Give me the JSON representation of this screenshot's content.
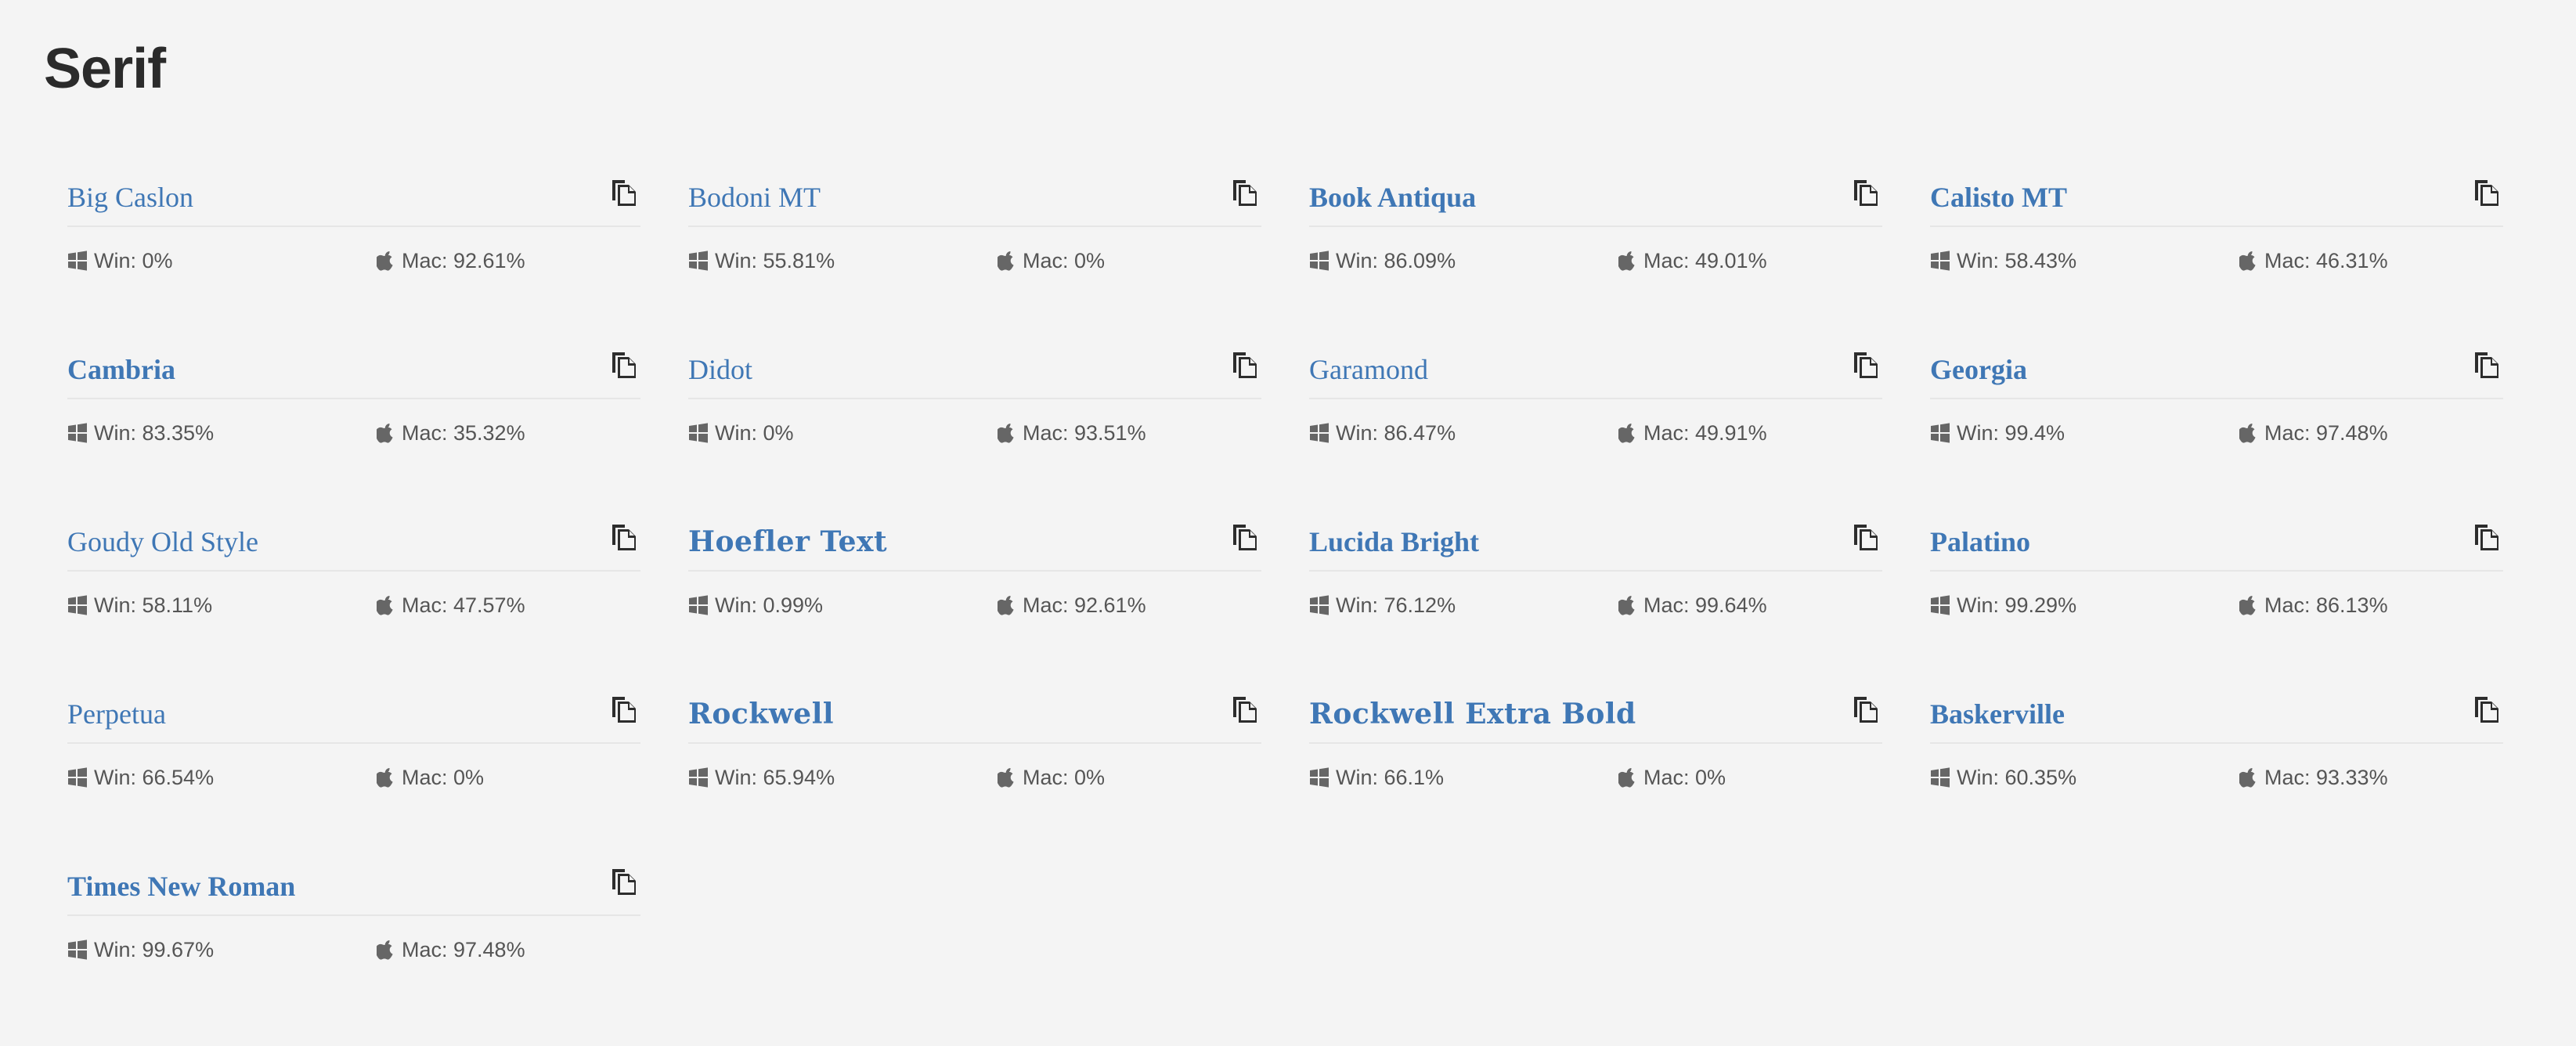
{
  "section": {
    "title": "Serif"
  },
  "colors": {
    "accent": "#3f77b5",
    "text": "#555555",
    "background": "#f4f4f4"
  },
  "icons": {
    "win": "windows-icon",
    "mac": "apple-icon",
    "copy": "copy-icon"
  },
  "fonts": [
    {
      "name": "Big Caslon",
      "win": "Win: 0%",
      "mac": "Mac: 92.61%"
    },
    {
      "name": "Bodoni MT",
      "win": "Win: 55.81%",
      "mac": "Mac: 0%"
    },
    {
      "name": "Book Antiqua",
      "win": "Win: 86.09%",
      "mac": "Mac: 49.01%"
    },
    {
      "name": "Calisto MT",
      "win": "Win: 58.43%",
      "mac": "Mac: 46.31%"
    },
    {
      "name": "Cambria",
      "win": "Win: 83.35%",
      "mac": "Mac: 35.32%"
    },
    {
      "name": "Didot",
      "win": "Win: 0%",
      "mac": "Mac: 93.51%"
    },
    {
      "name": "Garamond",
      "win": "Win: 86.47%",
      "mac": "Mac: 49.91%"
    },
    {
      "name": "Georgia",
      "win": "Win: 99.4%",
      "mac": "Mac: 97.48%"
    },
    {
      "name": "Goudy Old Style",
      "win": "Win: 58.11%",
      "mac": "Mac: 47.57%"
    },
    {
      "name": "Hoefler Text",
      "win": "Win: 0.99%",
      "mac": "Mac: 92.61%"
    },
    {
      "name": "Lucida Bright",
      "win": "Win: 76.12%",
      "mac": "Mac: 99.64%"
    },
    {
      "name": "Palatino",
      "win": "Win: 99.29%",
      "mac": "Mac: 86.13%"
    },
    {
      "name": "Perpetua",
      "win": "Win: 66.54%",
      "mac": "Mac: 0%"
    },
    {
      "name": "Rockwell",
      "win": "Win: 65.94%",
      "mac": "Mac: 0%"
    },
    {
      "name": "Rockwell Extra Bold",
      "win": "Win: 66.1%",
      "mac": "Mac: 0%"
    },
    {
      "name": "Baskerville",
      "win": "Win: 60.35%",
      "mac": "Mac: 93.33%"
    },
    {
      "name": "Times New Roman",
      "win": "Win: 99.67%",
      "mac": "Mac: 97.48%"
    }
  ]
}
